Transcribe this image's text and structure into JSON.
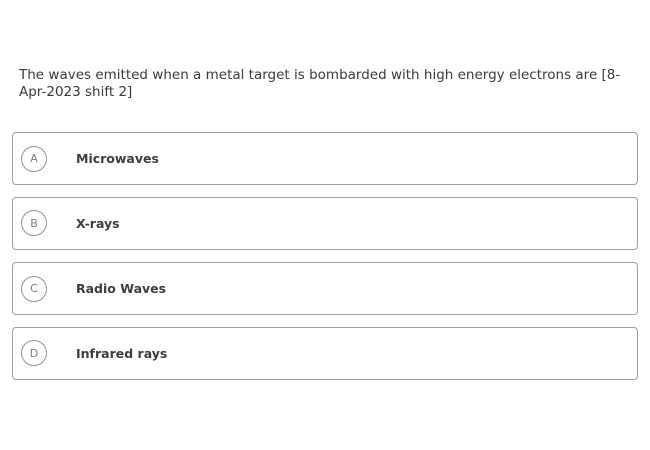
{
  "question": {
    "text": "The waves emitted when a metal target is bombarded with high energy electrons are [8-Apr-2023 shift 2]"
  },
  "options": [
    {
      "letter": "A",
      "text": "Microwaves"
    },
    {
      "letter": "B",
      "text": "X-rays"
    },
    {
      "letter": "C",
      "text": "Radio Waves"
    },
    {
      "letter": "D",
      "text": "Infrared rays"
    }
  ]
}
